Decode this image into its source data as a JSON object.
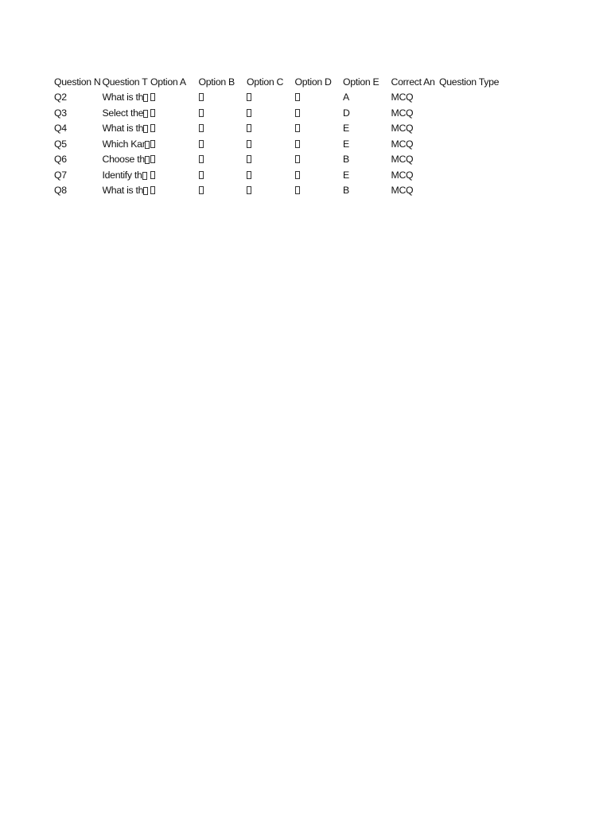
{
  "headers": [
    "Question N",
    "Question T",
    "Option A",
    "Option B",
    "Option C",
    "Option D",
    "Option E",
    "Correct An",
    "Question Type"
  ],
  "rows": [
    {
      "num": "Q2",
      "text": "What is th",
      "correct": "A",
      "type": "MCQ"
    },
    {
      "num": "Q3",
      "text": "Select the ",
      "correct": "D",
      "type": "MCQ"
    },
    {
      "num": "Q4",
      "text": "What is th",
      "correct": "E",
      "type": "MCQ"
    },
    {
      "num": "Q5",
      "text": "Which Kan",
      "correct": "E",
      "type": "MCQ"
    },
    {
      "num": "Q6",
      "text": "Choose th",
      "correct": "B",
      "type": "MCQ"
    },
    {
      "num": "Q7",
      "text": "Identify th",
      "correct": "E",
      "type": "MCQ"
    },
    {
      "num": "Q8",
      "text": "What is th",
      "correct": "B",
      "type": "MCQ"
    }
  ],
  "missing_glyph_icon": "tofu-box"
}
